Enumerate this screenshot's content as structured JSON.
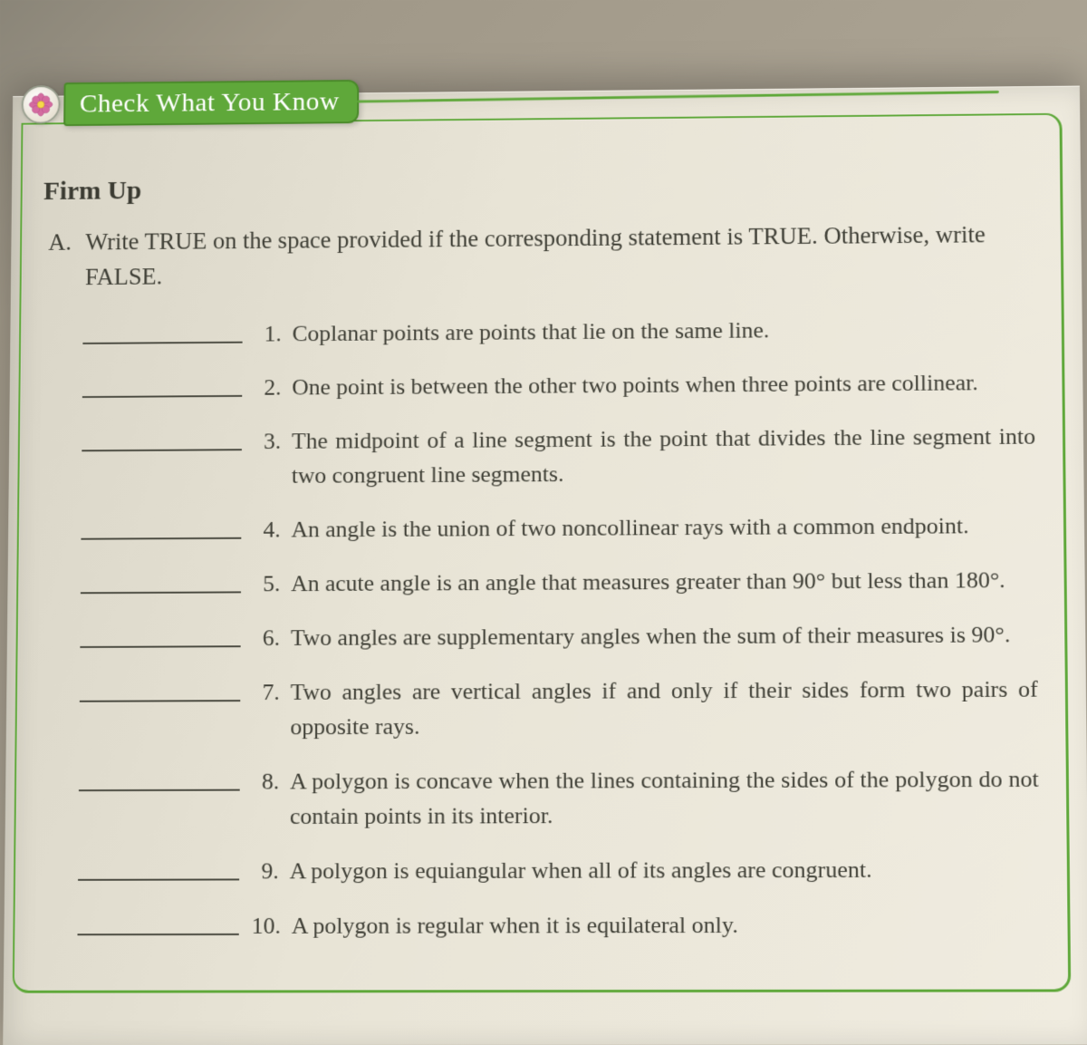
{
  "colors": {
    "accent_green": "#5fa83a",
    "text": "#3f3f36",
    "page_bg_light": "#f0ece0",
    "page_bg_dark": "#d8d4c6"
  },
  "header": {
    "tab_title": "Check What You Know",
    "subtitle": "Firm Up"
  },
  "section": {
    "label": "A.",
    "instruction": "Write TRUE on the space provided if the corresponding statement is TRUE. Otherwise, write FALSE."
  },
  "items": [
    {
      "num": "1.",
      "text": "Coplanar points are points that lie on the same line."
    },
    {
      "num": "2.",
      "text": "One point is between the other two points when three points are collinear."
    },
    {
      "num": "3.",
      "text": "The midpoint of a line segment is the point that divides the line segment into two congruent line segments."
    },
    {
      "num": "4.",
      "text": "An angle is the union of two noncollinear rays with a common endpoint."
    },
    {
      "num": "5.",
      "text": "An acute angle is an angle that measures greater than 90° but less than 180°."
    },
    {
      "num": "6.",
      "text": "Two angles are supplementary angles when the sum of their measures is 90°."
    },
    {
      "num": "7.",
      "text": "Two angles are vertical angles if and only if their sides form two pairs of opposite rays."
    },
    {
      "num": "8.",
      "text": "A polygon is concave when the lines containing the sides of the polygon do not contain points in its interior."
    },
    {
      "num": "9.",
      "text": "A polygon is equiangular when all of its angles are congruent."
    },
    {
      "num": "10.",
      "text": "A polygon is regular when it is equilateral only."
    }
  ]
}
